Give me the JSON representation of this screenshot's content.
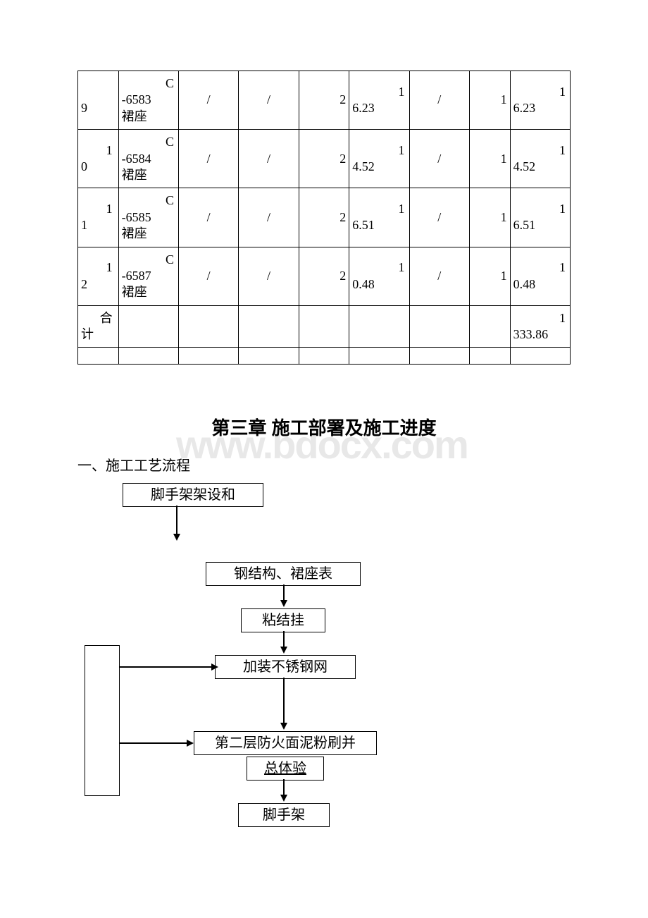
{
  "table": {
    "rows": [
      {
        "c0_top": "",
        "c0_bot": "9",
        "c1": "C-6583裙座",
        "c2": "/",
        "c3": "/",
        "c4": "2",
        "c5_top": "1",
        "c5_bot": "6.23",
        "c6": "/",
        "c7": "1",
        "c8_top": "1",
        "c8_bot": "6.23"
      },
      {
        "c0_top": "1",
        "c0_bot": "0",
        "c1": "C-6584裙座",
        "c2": "/",
        "c3": "/",
        "c4": "2",
        "c5_top": "1",
        "c5_bot": "4.52",
        "c6": "/",
        "c7": "1",
        "c8_top": "1",
        "c8_bot": "4.52"
      },
      {
        "c0_top": "1",
        "c0_bot": "1",
        "c1": "C-6585裙座",
        "c2": "/",
        "c3": "/",
        "c4": "2",
        "c5_top": "1",
        "c5_bot": "6.51",
        "c6": "/",
        "c7": "1",
        "c8_top": "1",
        "c8_bot": "6.51"
      },
      {
        "c0_top": "1",
        "c0_bot": "2",
        "c1": "C-6587裙座",
        "c2": "/",
        "c3": "/",
        "c4": "2",
        "c5_top": "1",
        "c5_bot": "0.48",
        "c6": "/",
        "c7": "1",
        "c8_top": "1",
        "c8_bot": "0.48"
      }
    ],
    "sum_label_top": "合",
    "sum_label_bot": "计",
    "sum_top": "1",
    "sum_bot": "333.86"
  },
  "chapter_title": "第三章  施工部署及施工进度",
  "section1": "一、施工工艺流程",
  "flow": {
    "b1": "脚手架架设和",
    "b2": "钢结构、裙座表",
    "b3": "粘结挂",
    "b4": "加装不锈钢网",
    "b5": "第二层防火面泥粉刷并",
    "b6": "总体验",
    "b7": "脚手架"
  },
  "watermark": "www.bdocx.com"
}
